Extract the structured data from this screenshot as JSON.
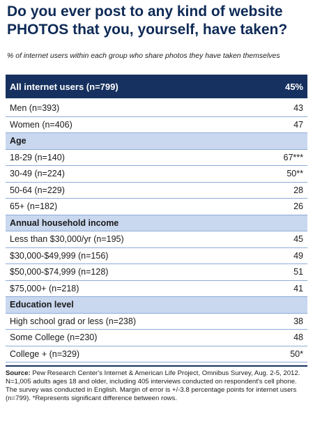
{
  "chart_data": {
    "type": "table",
    "title": "Do you ever post to any kind of website PHOTOS that you, yourself, have taken?",
    "subtitle": "% of internet users within each group who share photos they have taken themselves",
    "rows": [
      {
        "kind": "total",
        "label": "All internet users (n=799)",
        "value": "45%"
      },
      {
        "kind": "row",
        "label": "Men (n=393)",
        "value": "43"
      },
      {
        "kind": "row",
        "label": "Women (n=406)",
        "value": "47"
      },
      {
        "kind": "header",
        "label": "Age",
        "value": ""
      },
      {
        "kind": "row",
        "label": "18-29 (n=140)",
        "value": "67***"
      },
      {
        "kind": "row",
        "label": "30-49 (n=224)",
        "value": "50**"
      },
      {
        "kind": "row",
        "label": "50-64 (n=229)",
        "value": "28"
      },
      {
        "kind": "row",
        "label": "65+ (n=182)",
        "value": "26"
      },
      {
        "kind": "header",
        "label": "Annual household income",
        "value": ""
      },
      {
        "kind": "row",
        "label": "Less than $30,000/yr (n=195)",
        "value": "45"
      },
      {
        "kind": "row",
        "label": "$30,000-$49,999 (n=156)",
        "value": "49"
      },
      {
        "kind": "row",
        "label": "$50,000-$74,999 (n=128)",
        "value": "51"
      },
      {
        "kind": "row",
        "label": "$75,000+ (n=218)",
        "value": "41"
      },
      {
        "kind": "header",
        "label": "Education level",
        "value": ""
      },
      {
        "kind": "row",
        "label": "High school grad or less (n=238)",
        "value": "38"
      },
      {
        "kind": "row",
        "label": "Some College (n=230)",
        "value": "48"
      },
      {
        "kind": "row",
        "label": "College + (n=329)",
        "value": "50*"
      }
    ],
    "source_label": "Source:",
    "source_text": "Pew Research Center's Internet & American Life Project, Omnibus Survey, Aug. 2-5, 2012. N=1,005 adults ages 18 and older, including 405 interviews conducted on respondent's cell phone. The survey was conducted in English. Margin of error is +/-3.8 percentage points for internet users (n=799). *Represents significant difference between rows."
  }
}
